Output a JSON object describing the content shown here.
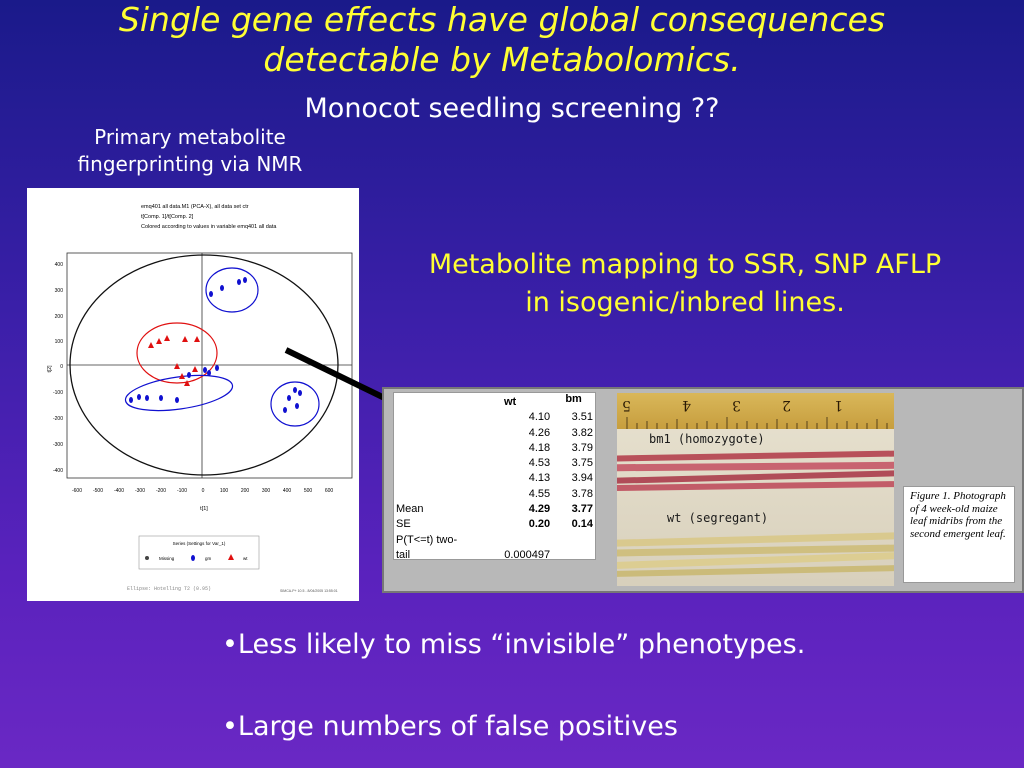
{
  "slide": {
    "title_line1": "Single gene effects have global consequences",
    "title_line2": "detectable by Metabolomics.",
    "subtitle": "Monocot seedling screening ??",
    "left_heading_line1": "Primary metabolite",
    "left_heading_line2": "fingerprinting via NMR",
    "mapping_line1": "Metabolite mapping to SSR, SNP AFLP",
    "mapping_line2": "in isogenic/inbred lines.",
    "bullet1": "•Less likely to miss “invisible” phenotypes.",
    "bullet2": "•Large numbers of false positives"
  },
  "pca": {
    "header_line1": "emq401 all data.M1 (PCA-X), all data set ctr",
    "header_line2": "t[Comp. 1]/t[Comp. 2]",
    "header_line3": "Colored according to values in variable emq401 all data",
    "x_label": "t[1]",
    "y_label": "t[2]",
    "x_ticks": [
      "-600",
      "-500",
      "-400",
      "-300",
      "-200",
      "-100",
      "0",
      "100",
      "200",
      "300",
      "400",
      "500",
      "600"
    ],
    "y_ticks": [
      "400",
      "300",
      "200",
      "100",
      "0",
      "-100",
      "-200",
      "-300",
      "-400"
    ],
    "legend_title": "Series (Settings for Var_1)",
    "legend_missing": "Missing",
    "legend_gm": "gm",
    "legend_wt": "wt",
    "ellipse_note": "Ellipse: Hotelling T2 (0.95)",
    "footer_stamp": "SIMCA-P+ 10.5 - 8/04/2005 13:55:01",
    "colors": {
      "gm": "#1010d0",
      "wt": "#e01010",
      "circle_blue": "#1010d0",
      "circle_red": "#e01010"
    }
  },
  "table": {
    "col_wt": "wt",
    "col_bm": "bm",
    "rows": [
      {
        "label": "",
        "wt": "4.10",
        "bm": "3.51"
      },
      {
        "label": "",
        "wt": "4.26",
        "bm": "3.82"
      },
      {
        "label": "",
        "wt": "4.18",
        "bm": "3.79"
      },
      {
        "label": "",
        "wt": "4.53",
        "bm": "3.75"
      },
      {
        "label": "",
        "wt": "4.13",
        "bm": "3.94"
      },
      {
        "label": "",
        "wt": "4.55",
        "bm": "3.78"
      }
    ],
    "mean_label": "Mean",
    "mean_wt": "4.29",
    "mean_bm": "3.77",
    "se_label": "SE",
    "se_wt": "0.20",
    "se_bm": "0.14",
    "p_label_line1": "P(T<=t) two-",
    "p_label_line2": "tail",
    "p_value": "0.000497"
  },
  "photo": {
    "ruler_numbers": [
      "5",
      "4",
      "3",
      "2",
      "1"
    ],
    "label_top": "bm1 (homozygote)",
    "label_bottom": "wt (segregant)"
  },
  "caption": {
    "text": "Figure 1. Photograph of 4 week-old maize leaf midribs from the second emergent leaf."
  }
}
